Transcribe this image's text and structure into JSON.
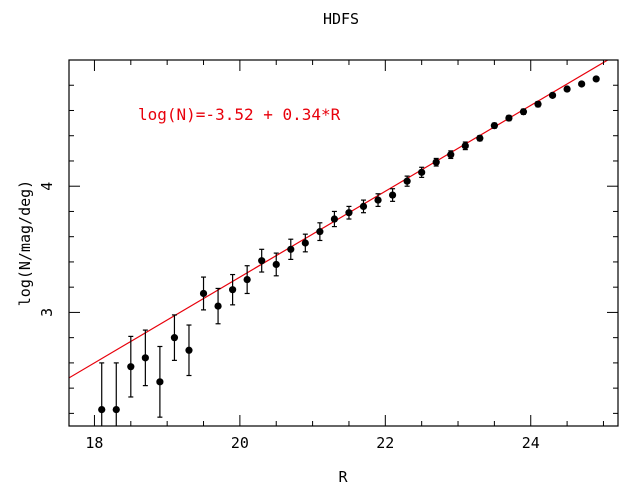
{
  "chart_data": {
    "type": "scatter",
    "title": "HDFS",
    "xlabel": "R",
    "ylabel": "log(N/mag/deg)",
    "xlim": [
      17.65,
      25.2
    ],
    "ylim": [
      2.1,
      5.0
    ],
    "x_ticks": [
      18,
      20,
      22,
      24
    ],
    "x_tick_labels": [
      "18",
      "20",
      "22",
      "24"
    ],
    "y_ticks": [
      3,
      4
    ],
    "y_tick_labels": [
      "3",
      "4"
    ],
    "x_minor_step": 0.5,
    "y_minor_step": 0.2,
    "grid": false,
    "fit_line": {
      "intercept": -3.52,
      "slope": 0.34,
      "color": "#e8000b"
    },
    "annotation": "log(N)=-3.52 + 0.34*R",
    "series": [
      {
        "color": "#000000",
        "points": [
          {
            "x": 18.1,
            "y": 2.23,
            "err": 0.37
          },
          {
            "x": 18.3,
            "y": 2.23,
            "err": 0.37
          },
          {
            "x": 18.5,
            "y": 2.57,
            "err": 0.24
          },
          {
            "x": 18.7,
            "y": 2.64,
            "err": 0.22
          },
          {
            "x": 18.9,
            "y": 2.45,
            "err": 0.28
          },
          {
            "x": 19.1,
            "y": 2.8,
            "err": 0.18
          },
          {
            "x": 19.3,
            "y": 2.7,
            "err": 0.2
          },
          {
            "x": 19.5,
            "y": 3.15,
            "err": 0.13
          },
          {
            "x": 19.7,
            "y": 3.05,
            "err": 0.14
          },
          {
            "x": 19.9,
            "y": 3.18,
            "err": 0.12
          },
          {
            "x": 20.1,
            "y": 3.26,
            "err": 0.11
          },
          {
            "x": 20.3,
            "y": 3.41,
            "err": 0.09
          },
          {
            "x": 20.5,
            "y": 3.38,
            "err": 0.09
          },
          {
            "x": 20.7,
            "y": 3.5,
            "err": 0.08
          },
          {
            "x": 20.9,
            "y": 3.55,
            "err": 0.07
          },
          {
            "x": 21.1,
            "y": 3.64,
            "err": 0.07
          },
          {
            "x": 21.3,
            "y": 3.74,
            "err": 0.06
          },
          {
            "x": 21.5,
            "y": 3.79,
            "err": 0.05
          },
          {
            "x": 21.7,
            "y": 3.84,
            "err": 0.05
          },
          {
            "x": 21.9,
            "y": 3.89,
            "err": 0.05
          },
          {
            "x": 22.1,
            "y": 3.93,
            "err": 0.05
          },
          {
            "x": 22.3,
            "y": 4.04,
            "err": 0.04
          },
          {
            "x": 22.5,
            "y": 4.11,
            "err": 0.04
          },
          {
            "x": 22.7,
            "y": 4.19,
            "err": 0.03
          },
          {
            "x": 22.9,
            "y": 4.25,
            "err": 0.03
          },
          {
            "x": 23.1,
            "y": 4.32,
            "err": 0.03
          },
          {
            "x": 23.3,
            "y": 4.38,
            "err": 0.02
          },
          {
            "x": 23.5,
            "y": 4.48,
            "err": 0.02
          },
          {
            "x": 23.7,
            "y": 4.54,
            "err": 0.02
          },
          {
            "x": 23.9,
            "y": 4.59,
            "err": 0.02
          },
          {
            "x": 24.1,
            "y": 4.65,
            "err": 0.02
          },
          {
            "x": 24.3,
            "y": 4.72,
            "err": 0.01
          },
          {
            "x": 24.5,
            "y": 4.77,
            "err": 0.01
          },
          {
            "x": 24.7,
            "y": 4.81,
            "err": 0.01
          },
          {
            "x": 24.9,
            "y": 4.85,
            "err": 0.01
          }
        ]
      }
    ]
  }
}
